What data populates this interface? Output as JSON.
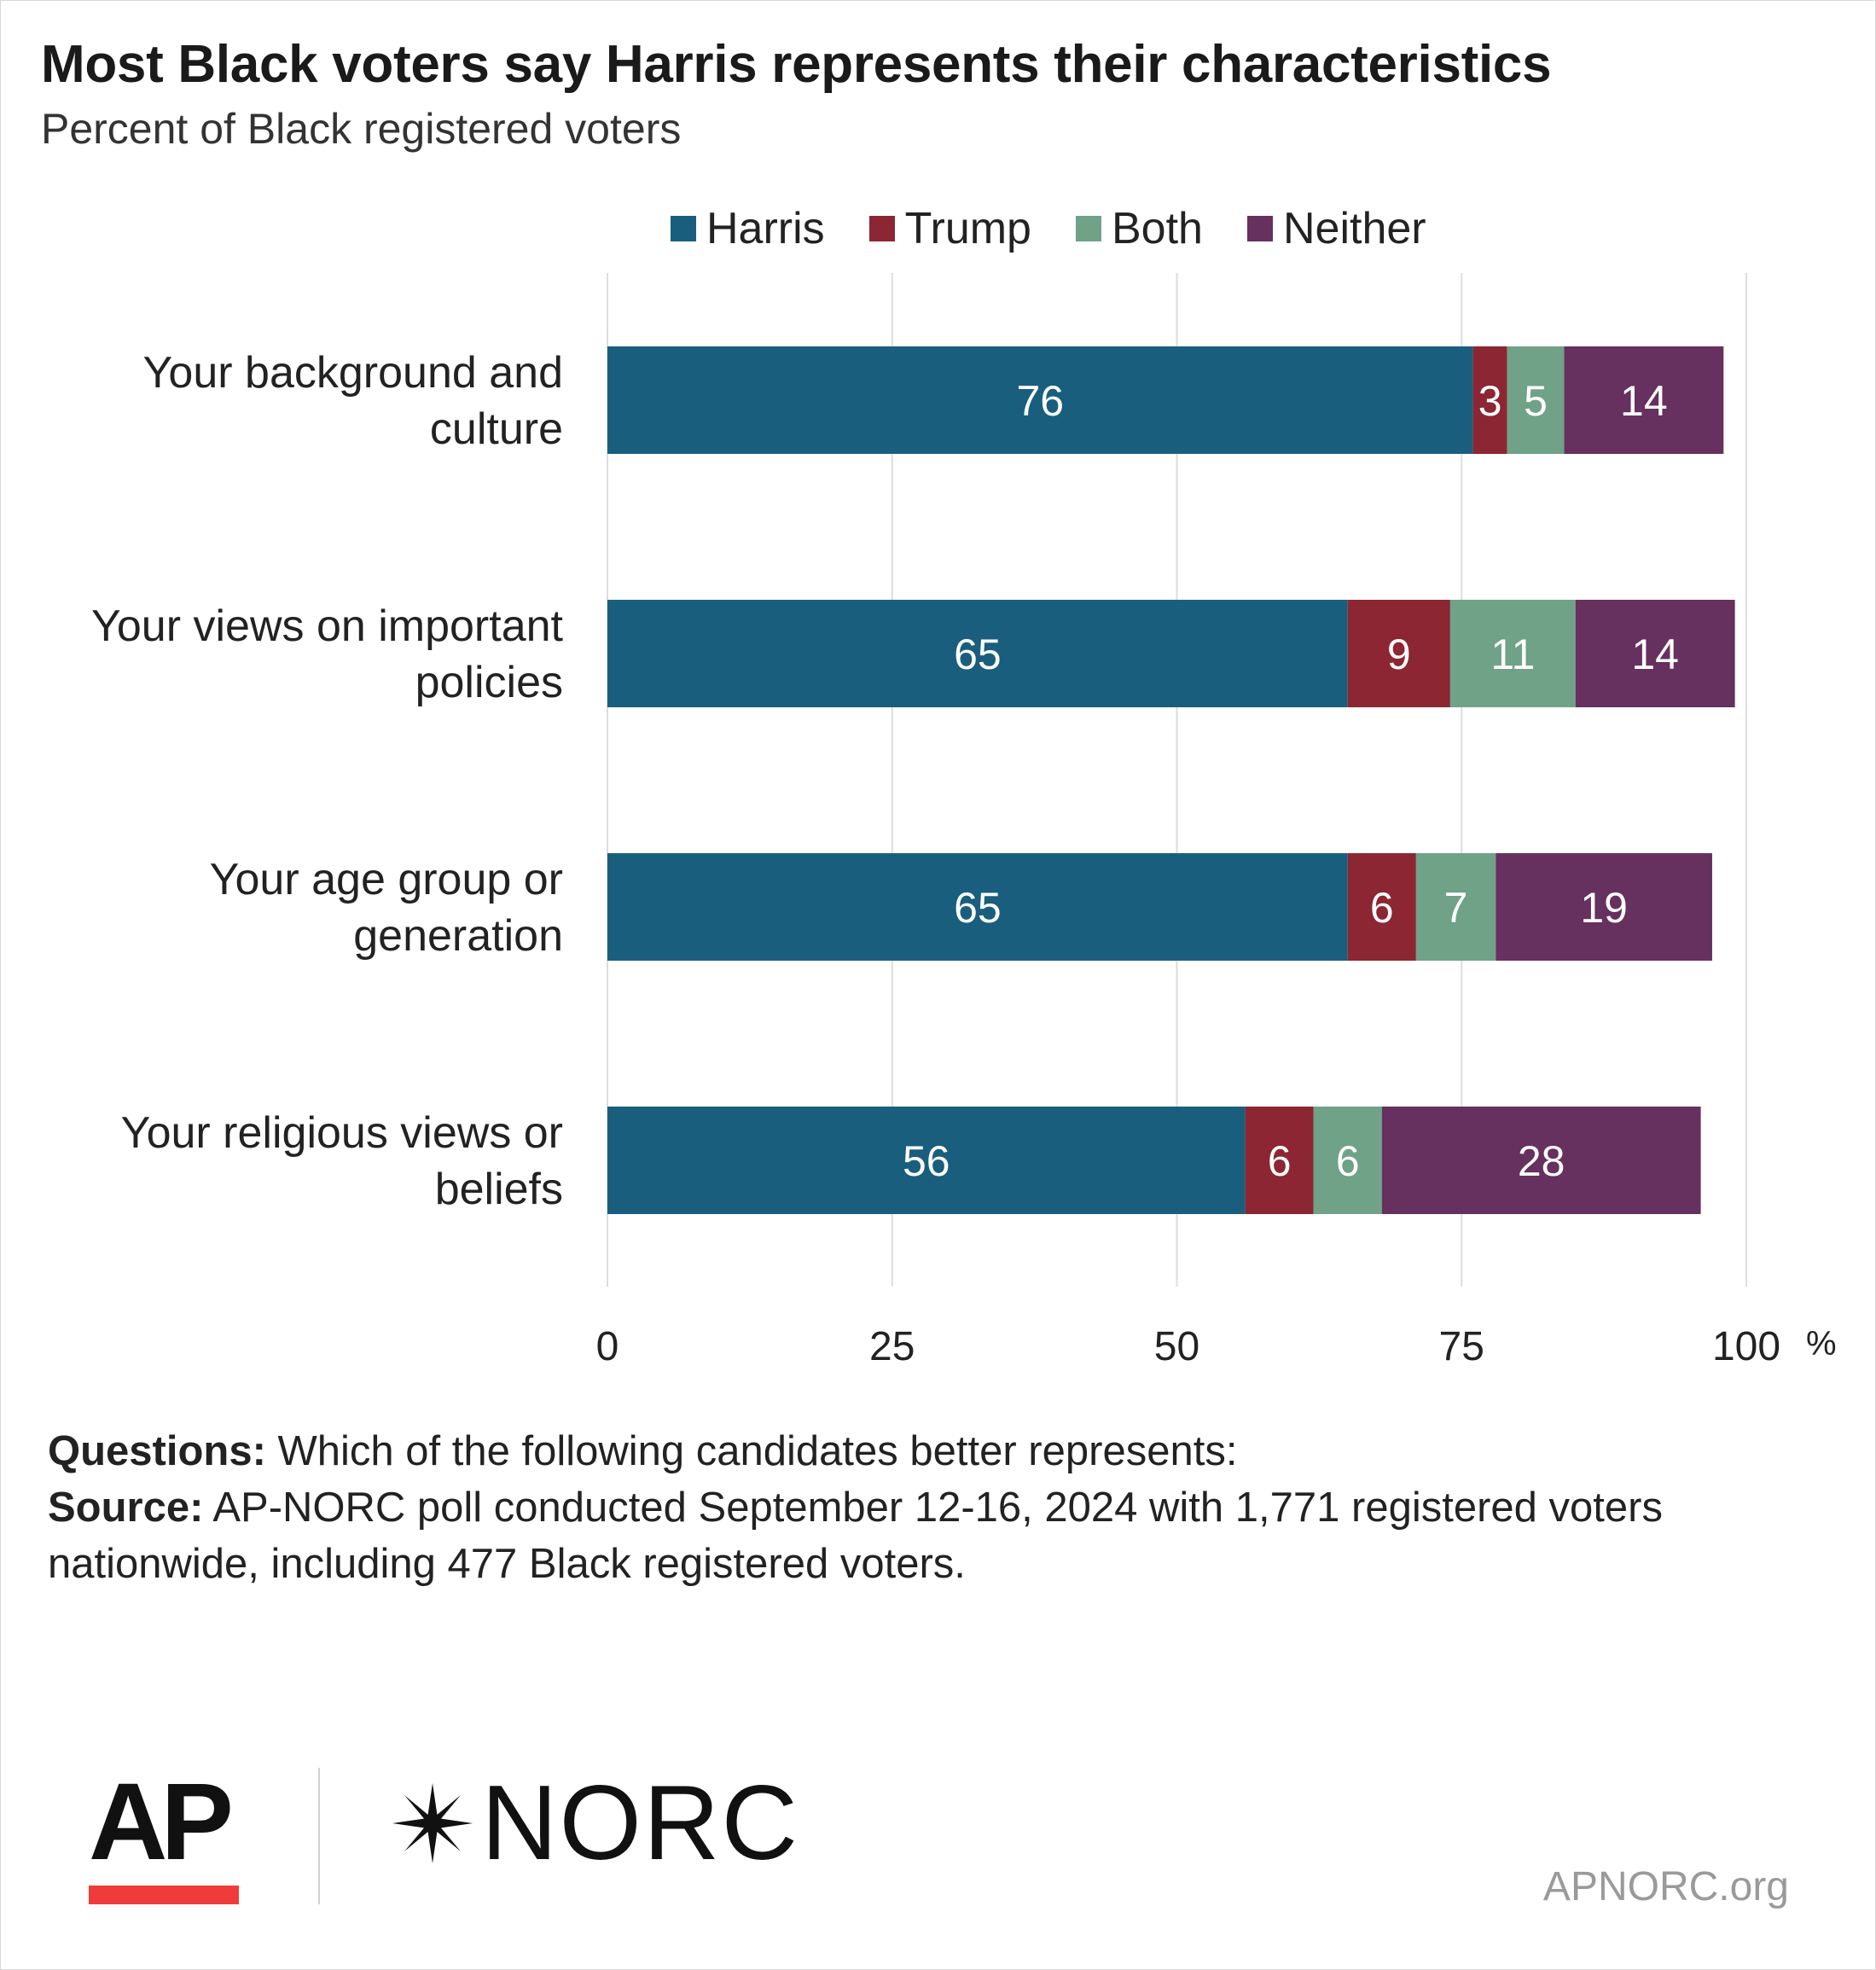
{
  "title": "Most Black voters say Harris represents their characteristics",
  "subtitle": "Percent of Black registered voters",
  "chart_data": {
    "type": "bar",
    "orientation": "horizontal",
    "stacked": true,
    "title": "Most Black voters say Harris represents their characteristics",
    "subtitle": "Percent of Black registered voters",
    "categories": [
      [
        "Your background and",
        "culture"
      ],
      [
        "Your views on important",
        "policies"
      ],
      [
        "Your age group or",
        "generation"
      ],
      [
        "Your religious views or",
        "beliefs"
      ]
    ],
    "series": [
      {
        "name": "Harris",
        "color": "#1a5e7e",
        "values": [
          76,
          65,
          65,
          56
        ]
      },
      {
        "name": "Trump",
        "color": "#8b2632",
        "values": [
          3,
          9,
          6,
          6
        ]
      },
      {
        "name": "Both",
        "color": "#6fa287",
        "values": [
          5,
          11,
          7,
          6
        ]
      },
      {
        "name": "Neither",
        "color": "#66305f",
        "values": [
          14,
          14,
          19,
          28
        ]
      }
    ],
    "xlim": [
      0,
      100
    ],
    "xticks": [
      "0",
      "25",
      "50",
      "75",
      "100"
    ],
    "x_unit": "%",
    "grid": true,
    "legend_position": "top"
  },
  "notes": {
    "questions_label": "Questions:",
    "questions_text": " Which of the following candidates better represents:",
    "source_label": "Source:",
    "source_text": " AP-NORC poll conducted September 12-16, 2024 with 1,771 registered voters nationwide, including 477 Black registered voters."
  },
  "logos": {
    "ap": "AP",
    "norc": "NORC",
    "site": "APNORC.org",
    "ap_accent": "#ef3b39"
  }
}
